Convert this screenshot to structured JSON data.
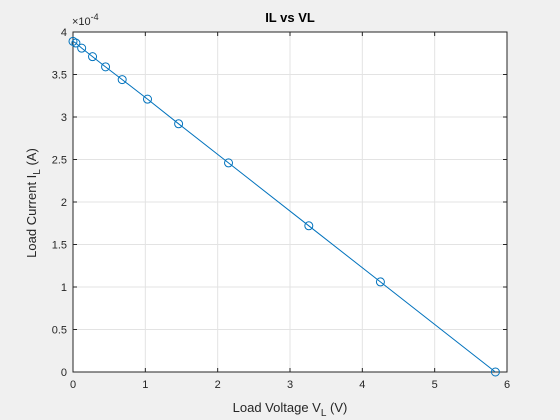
{
  "chart_data": {
    "type": "line",
    "title": "IL vs VL",
    "xlabel": {
      "main": "Load Voltage V",
      "sub": "L",
      "unit": " (V)"
    },
    "ylabel": {
      "main": "Load Current I",
      "sub": "L",
      "unit": " (A)"
    },
    "y_multiplier": {
      "base": "×10",
      "exponent": "-4"
    },
    "xlim": [
      0,
      6
    ],
    "ylim": [
      0,
      4
    ],
    "x_ticks": [
      "0",
      "1",
      "2",
      "3",
      "4",
      "5",
      "6"
    ],
    "y_ticks": [
      "0",
      "0.5",
      "1",
      "1.5",
      "2",
      "2.5",
      "3",
      "3.5",
      "4"
    ],
    "grid": true,
    "marker": "circle",
    "colors": {
      "series": "#0072bd",
      "grid": "#e3e3e3",
      "axes": "#262626",
      "plot_bg": "#ffffff",
      "figure_bg": "#f0f0f0"
    },
    "series": [
      {
        "x": [
          0.0,
          0.04,
          0.12,
          0.27,
          0.45,
          0.68,
          1.03,
          1.46,
          2.15,
          3.26,
          4.25,
          5.84
        ],
        "y": [
          3.89,
          3.87,
          3.81,
          3.71,
          3.59,
          3.44,
          3.21,
          2.92,
          2.46,
          1.72,
          1.06,
          0.0
        ]
      }
    ]
  }
}
